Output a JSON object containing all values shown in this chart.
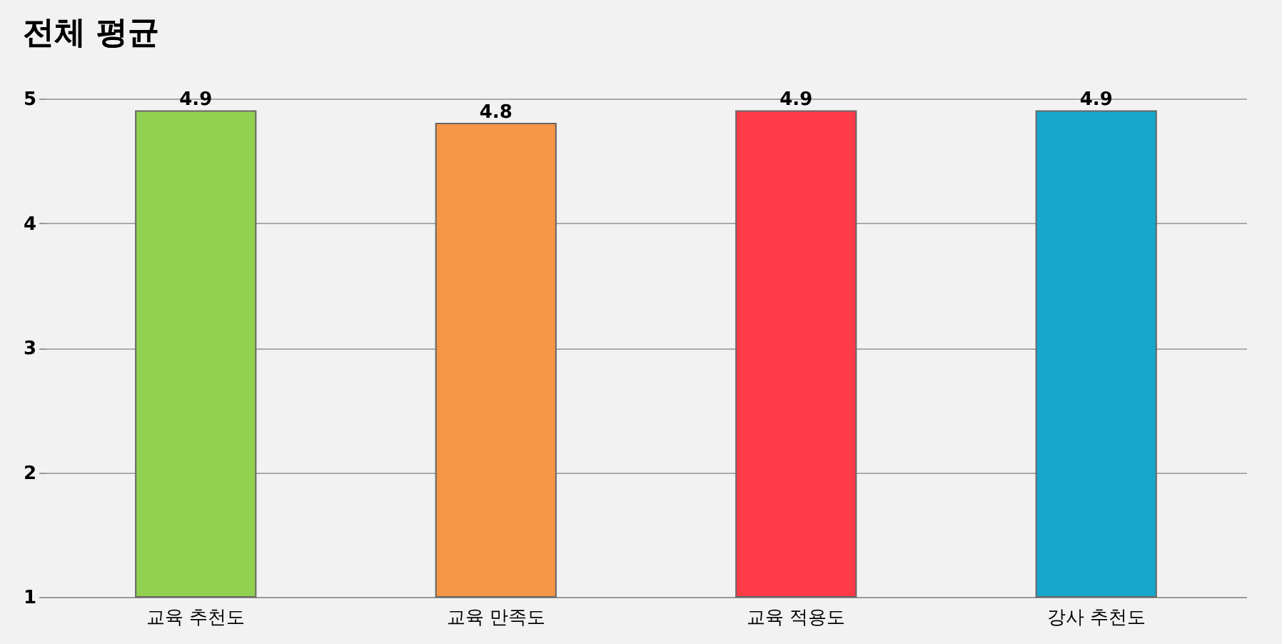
{
  "chart_data": {
    "type": "bar",
    "title": "전체 평균",
    "categories": [
      "교육 추천도",
      "교육 만족도",
      "교육 적용도",
      "강사 추천도"
    ],
    "values": [
      4.9,
      4.8,
      4.9,
      4.9
    ],
    "colors": [
      "#92d050",
      "#f79646",
      "#ff3b47",
      "#17a7cc"
    ],
    "ylim": [
      1,
      5
    ],
    "yticks": [
      1,
      2,
      3,
      4,
      5
    ],
    "grid": "y",
    "data_labels": true
  }
}
